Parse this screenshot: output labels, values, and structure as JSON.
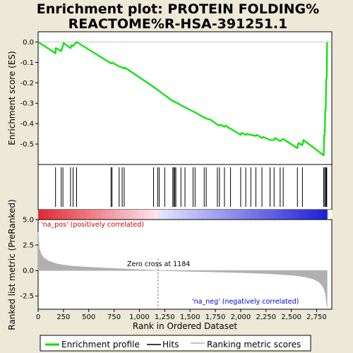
{
  "title_line1": "Enrichment plot: PROTEIN FOLDING%",
  "title_line2": "REACTOME%R-HSA-391251.1",
  "ylabel_top": "Enrichment score (ES)",
  "ylabel_bottom": "Ranked list metric (PreRanked)",
  "xlabel": "Rank in Ordered Dataset",
  "pos_label": "'na_pos' (positively correlated)",
  "neg_label": "'na_neg' (negatively correlated)",
  "zero_cross_label": "Zero cross at 1184",
  "colors": {
    "es_line": "#00e400",
    "hit_line": "#000000",
    "metric_fill": "#b0b0b0",
    "pos_text": "#cc0000",
    "neg_text": "#0000cc",
    "zero_line": "#808080"
  },
  "legend": [
    {
      "label": "Enrichment profile",
      "icon": "green-line-icon"
    },
    {
      "label": "Hits",
      "icon": "black-line-icon"
    },
    {
      "label": "Ranking metric scores",
      "icon": "gray-line-icon"
    }
  ],
  "chart_data": {
    "type": "line",
    "x_range": [
      0,
      2900
    ],
    "n_ranks": 2853,
    "zero_cross": 1184,
    "es_ylim": [
      -0.6,
      0.05
    ],
    "es_yticks": [
      "0.0",
      "-0.1",
      "-0.2",
      "-0.3",
      "-0.4",
      "-0.5"
    ],
    "es_ytick_values": [
      0.0,
      -0.1,
      -0.2,
      -0.3,
      -0.4,
      -0.5
    ],
    "metric_ylim": [
      -3.8,
      5.0
    ],
    "metric_yticks": [
      "5.0",
      "2.5",
      "0.0",
      "-2.5"
    ],
    "metric_ytick_values": [
      5.0,
      2.5,
      0.0,
      -2.5
    ],
    "xticks": [
      "0",
      "250",
      "500",
      "750",
      "1,000",
      "1,250",
      "1,500",
      "1,750",
      "2,000",
      "2,250",
      "2,500",
      "2,750"
    ],
    "xtick_values": [
      0,
      250,
      500,
      750,
      1000,
      1250,
      1500,
      1750,
      2000,
      2250,
      2500,
      2750
    ],
    "hits": [
      172,
      228,
      245,
      320,
      345,
      380,
      720,
      730,
      800,
      830,
      850,
      1140,
      1180,
      1195,
      1250,
      1330,
      1340,
      1350,
      1360,
      1410,
      1450,
      1530,
      1550,
      1640,
      1660,
      1770,
      1790,
      1840,
      1900,
      2000,
      2050,
      2100,
      2150,
      2210,
      2290,
      2330,
      2390,
      2420,
      2560,
      2610,
      2820,
      2830,
      2840,
      2845,
      2850
    ],
    "es_points": [
      [
        0,
        0.0
      ],
      [
        172,
        -0.055
      ],
      [
        175,
        -0.03
      ],
      [
        228,
        -0.045
      ],
      [
        245,
        -0.02
      ],
      [
        250,
        -0.005
      ],
      [
        320,
        -0.03
      ],
      [
        330,
        -0.015
      ],
      [
        345,
        -0.02
      ],
      [
        370,
        -0.005
      ],
      [
        380,
        0.0
      ],
      [
        720,
        -0.105
      ],
      [
        730,
        -0.1
      ],
      [
        800,
        -0.12
      ],
      [
        830,
        -0.125
      ],
      [
        850,
        -0.13
      ],
      [
        855,
        -0.125
      ],
      [
        1140,
        -0.22
      ],
      [
        1180,
        -0.235
      ],
      [
        1195,
        -0.24
      ],
      [
        1250,
        -0.26
      ],
      [
        1330,
        -0.29
      ],
      [
        1340,
        -0.29
      ],
      [
        1350,
        -0.295
      ],
      [
        1360,
        -0.295
      ],
      [
        1410,
        -0.31
      ],
      [
        1450,
        -0.32
      ],
      [
        1530,
        -0.34
      ],
      [
        1550,
        -0.345
      ],
      [
        1640,
        -0.37
      ],
      [
        1660,
        -0.375
      ],
      [
        1700,
        -0.38
      ],
      [
        1770,
        -0.405
      ],
      [
        1790,
        -0.41
      ],
      [
        1800,
        -0.405
      ],
      [
        1840,
        -0.415
      ],
      [
        1850,
        -0.41
      ],
      [
        1900,
        -0.425
      ],
      [
        2000,
        -0.455
      ],
      [
        2010,
        -0.445
      ],
      [
        2050,
        -0.455
      ],
      [
        2060,
        -0.45
      ],
      [
        2100,
        -0.455
      ],
      [
        2150,
        -0.46
      ],
      [
        2160,
        -0.455
      ],
      [
        2210,
        -0.47
      ],
      [
        2220,
        -0.465
      ],
      [
        2290,
        -0.48
      ],
      [
        2330,
        -0.48
      ],
      [
        2340,
        -0.47
      ],
      [
        2390,
        -0.485
      ],
      [
        2420,
        -0.475
      ],
      [
        2560,
        -0.52
      ],
      [
        2570,
        -0.495
      ],
      [
        2610,
        -0.505
      ],
      [
        2620,
        -0.48
      ],
      [
        2820,
        -0.555
      ],
      [
        2825,
        -0.455
      ],
      [
        2830,
        -0.45
      ],
      [
        2835,
        -0.335
      ],
      [
        2840,
        -0.33
      ],
      [
        2845,
        -0.18
      ],
      [
        2850,
        -0.175
      ],
      [
        2853,
        0.0
      ]
    ],
    "metric_curve": [
      [
        0,
        3.8
      ],
      [
        10,
        2.2
      ],
      [
        30,
        1.6
      ],
      [
        60,
        1.2
      ],
      [
        100,
        0.95
      ],
      [
        150,
        0.75
      ],
      [
        200,
        0.62
      ],
      [
        260,
        0.52
      ],
      [
        350,
        0.42
      ],
      [
        500,
        0.32
      ],
      [
        700,
        0.22
      ],
      [
        900,
        0.12
      ],
      [
        1100,
        0.04
      ],
      [
        1184,
        0.0
      ],
      [
        1400,
        -0.06
      ],
      [
        1700,
        -0.13
      ],
      [
        2000,
        -0.2
      ],
      [
        2200,
        -0.27
      ],
      [
        2400,
        -0.38
      ],
      [
        2550,
        -0.5
      ],
      [
        2650,
        -0.65
      ],
      [
        2720,
        -0.85
      ],
      [
        2770,
        -1.1
      ],
      [
        2800,
        -1.4
      ],
      [
        2825,
        -1.8
      ],
      [
        2840,
        -2.4
      ],
      [
        2853,
        -3.6
      ]
    ]
  }
}
